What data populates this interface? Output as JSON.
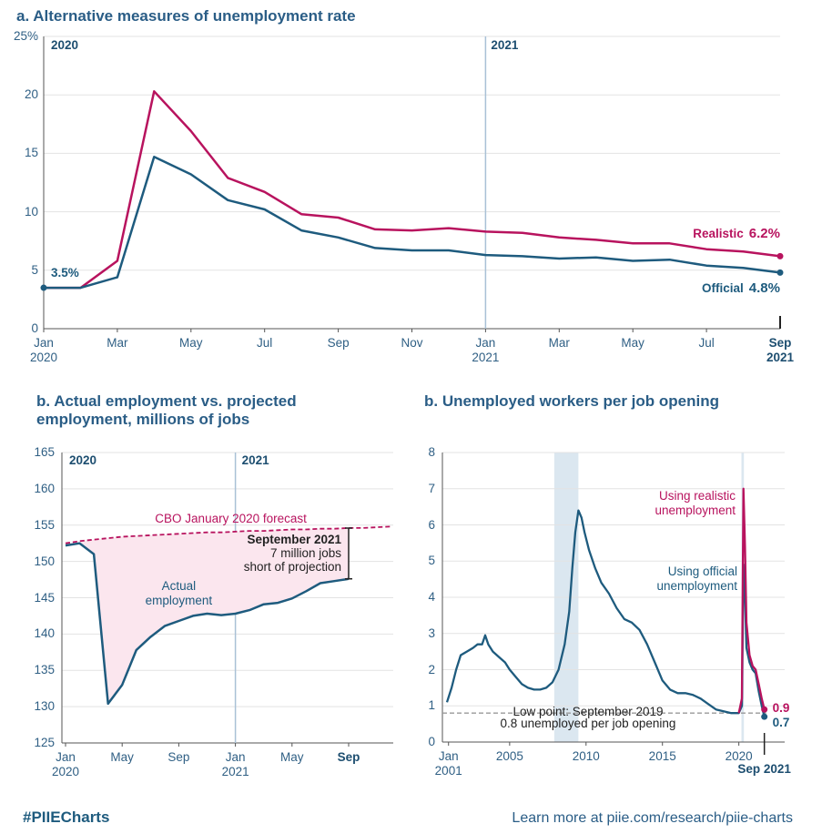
{
  "chart_data": [
    {
      "type": "line",
      "title": "a. Alternative measures of unemployment rate",
      "categories": [
        "Jan 2020",
        null,
        "Mar",
        null,
        "May",
        null,
        "Jul",
        null,
        "Sep",
        null,
        "Nov",
        null,
        "Jan 2021",
        null,
        "Mar",
        null,
        "May",
        null,
        "Jul",
        null,
        "Sep 2021"
      ],
      "period_labels": [
        "2020",
        "2021"
      ],
      "ylim": [
        0,
        25
      ],
      "yticks": [
        0,
        5,
        10,
        15,
        20,
        {
          "value": 25,
          "label": "25%"
        }
      ],
      "grid": true,
      "series": [
        {
          "name": "Realistic",
          "color": "#b8135e",
          "values": [
            3.5,
            3.5,
            5.8,
            20.3,
            16.9,
            12.9,
            11.7,
            9.8,
            9.5,
            8.5,
            8.4,
            8.6,
            8.3,
            8.2,
            7.8,
            7.6,
            7.3,
            7.3,
            6.8,
            6.6,
            6.2
          ],
          "value_labels": [
            null,
            null,
            null,
            null,
            null,
            null,
            null,
            null,
            null,
            null,
            null,
            null,
            null,
            null,
            null,
            null,
            null,
            null,
            null,
            null,
            "6.2%"
          ]
        },
        {
          "name": "Official",
          "color": "#1e5b7e",
          "values": [
            3.5,
            3.5,
            4.4,
            14.7,
            13.2,
            11.0,
            10.2,
            8.4,
            7.8,
            6.9,
            6.7,
            6.7,
            6.3,
            6.2,
            6.0,
            6.1,
            5.8,
            5.9,
            5.4,
            5.2,
            4.8
          ],
          "value_labels": [
            "3.5%",
            null,
            null,
            null,
            null,
            null,
            null,
            null,
            null,
            null,
            null,
            null,
            null,
            null,
            null,
            null,
            null,
            null,
            null,
            null,
            "4.8%"
          ]
        }
      ]
    },
    {
      "type": "line",
      "title": "b. Actual employment vs. projected employment, millions of jobs",
      "categories": [
        "Jan 2020",
        null,
        null,
        null,
        "May",
        null,
        null,
        null,
        "Sep",
        null,
        null,
        null,
        "Jan 2021",
        null,
        null,
        null,
        "May",
        null,
        null,
        null,
        "Sep",
        null,
        null,
        null
      ],
      "period_labels": [
        "2020",
        "2021"
      ],
      "ylim": [
        125,
        165
      ],
      "yticks": [
        125,
        130,
        135,
        140,
        145,
        150,
        155,
        160,
        165
      ],
      "grid": true,
      "annotation": [
        "September 2021",
        "7 million jobs",
        "short of projection"
      ],
      "series": [
        {
          "name": "CBO January 2020 forecast",
          "color": "#b8135e",
          "dashed": true,
          "values": [
            152.5,
            152.8,
            153.0,
            153.2,
            153.4,
            153.5,
            153.6,
            153.7,
            153.8,
            153.9,
            154.0,
            154.0,
            154.1,
            154.2,
            154.2,
            154.3,
            154.4,
            154.4,
            154.5,
            154.5,
            154.6,
            154.6,
            154.7,
            154.8
          ]
        },
        {
          "name": "Actual employment",
          "color": "#1e5b7e",
          "values": [
            152.2,
            152.5,
            151.0,
            130.4,
            133.0,
            137.8,
            139.6,
            141.1,
            141.8,
            142.5,
            142.8,
            142.6,
            142.8,
            143.3,
            144.1,
            144.3,
            144.9,
            145.9,
            147.0,
            147.3,
            147.6,
            null,
            null,
            null
          ]
        }
      ]
    },
    {
      "type": "line",
      "title": "b. Unemployed workers per job opening",
      "xlim": [
        2000.6,
        2023
      ],
      "xticks": [
        {
          "value": 2001,
          "label": "Jan 2001"
        },
        2005,
        2010,
        2015,
        2020,
        {
          "value": 2021.67,
          "label": "Sep 2021"
        }
      ],
      "ylim": [
        0,
        8
      ],
      "yticks": [
        0,
        1,
        2,
        3,
        4,
        5,
        6,
        7,
        8
      ],
      "grid": true,
      "shaded_periods": [
        [
          2007.92,
          2009.5
        ],
        [
          2020.17,
          2020.33
        ]
      ],
      "reference_line": {
        "value": 0.8,
        "label": [
          "Low point: September 2019",
          "0.8 unemployed per job opening"
        ]
      },
      "series": [
        {
          "name": "Using realistic unemployment",
          "color": "#b8135e",
          "x": [
            2020.0,
            2020.2,
            2020.3,
            2020.4,
            2020.5,
            2020.7,
            2020.9,
            2021.1,
            2021.3,
            2021.5,
            2021.67
          ],
          "values": [
            0.8,
            1.2,
            7.0,
            5.4,
            3.3,
            2.4,
            2.1,
            2.0,
            1.6,
            1.2,
            0.9
          ]
        },
        {
          "name": "Using official unemployment",
          "color": "#1e5b7e",
          "x": [
            2000.9,
            2001.2,
            2001.5,
            2001.8,
            2002.2,
            2002.6,
            2002.9,
            2003.2,
            2003.4,
            2003.6,
            2003.9,
            2004.3,
            2004.7,
            2005.0,
            2005.4,
            2005.8,
            2006.2,
            2006.6,
            2007.0,
            2007.4,
            2007.8,
            2008.2,
            2008.6,
            2008.9,
            2009.1,
            2009.3,
            2009.5,
            2009.7,
            2009.9,
            2010.2,
            2010.6,
            2011.0,
            2011.5,
            2012.0,
            2012.5,
            2013.0,
            2013.5,
            2014.0,
            2014.5,
            2015.0,
            2015.5,
            2016.0,
            2016.5,
            2017.0,
            2017.5,
            2018.0,
            2018.5,
            2019.0,
            2019.5,
            2019.75,
            2020.0,
            2020.2,
            2020.3,
            2020.4,
            2020.5,
            2020.7,
            2020.9,
            2021.1,
            2021.3,
            2021.5,
            2021.67
          ],
          "values": [
            1.1,
            1.5,
            2.0,
            2.4,
            2.5,
            2.6,
            2.7,
            2.7,
            2.95,
            2.7,
            2.5,
            2.35,
            2.2,
            2.0,
            1.8,
            1.6,
            1.5,
            1.45,
            1.45,
            1.5,
            1.65,
            2.0,
            2.7,
            3.6,
            4.8,
            5.8,
            6.4,
            6.2,
            5.8,
            5.3,
            4.8,
            4.4,
            4.1,
            3.7,
            3.4,
            3.3,
            3.1,
            2.7,
            2.2,
            1.7,
            1.45,
            1.35,
            1.35,
            1.3,
            1.2,
            1.05,
            0.9,
            0.85,
            0.8,
            0.8,
            0.8,
            1.0,
            4.9,
            4.0,
            2.6,
            2.2,
            2.0,
            1.9,
            1.4,
            1.0,
            0.7
          ]
        }
      ]
    }
  ],
  "footer": {
    "left": "#PIIECharts",
    "right": "Learn more at piie.com/research/piie-charts"
  }
}
